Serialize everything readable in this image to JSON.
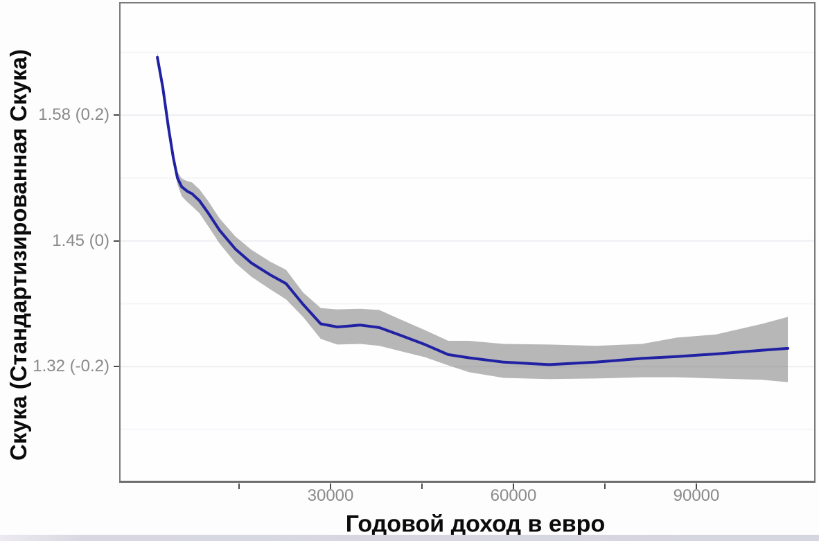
{
  "chart_data": {
    "type": "line",
    "title": "",
    "xlabel": "Годовой доход в евро",
    "ylabel": "Скука (Стандартизированная Скука)",
    "xlim": [
      -4660,
      109550
    ],
    "ylim": [
      -0.385,
      0.38
    ],
    "grid": "horizontal major and minor gridlines, very faint; no vertical gridlines",
    "legend": "none",
    "line_color": "#2121a3",
    "band_color": "#b8b8b8",
    "series": [
      {
        "name": "smoothed-boredom-vs-income",
        "x": [
          1600,
          2500,
          3400,
          4200,
          4900,
          5600,
          6500,
          7300,
          8500,
          9900,
          11800,
          14400,
          17000,
          20100,
          22700,
          25500,
          28400,
          31100,
          34900,
          38000,
          41700,
          45500,
          49300,
          52700,
          58400,
          65900,
          73500,
          81100,
          86800,
          93200,
          100800,
          105000
        ],
        "y": [
          0.292,
          0.244,
          0.182,
          0.133,
          0.1,
          0.086,
          0.079,
          0.075,
          0.064,
          0.045,
          0.017,
          -0.013,
          -0.035,
          -0.054,
          -0.068,
          -0.101,
          -0.132,
          -0.137,
          -0.134,
          -0.138,
          -0.151,
          -0.165,
          -0.181,
          -0.186,
          -0.193,
          -0.197,
          -0.193,
          -0.187,
          -0.184,
          -0.18,
          -0.174,
          -0.171
        ],
        "ci_upper": [
          0.3,
          0.251,
          0.19,
          0.141,
          0.11,
          0.099,
          0.095,
          0.093,
          0.082,
          0.064,
          0.036,
          0.007,
          -0.014,
          -0.033,
          -0.046,
          -0.082,
          -0.107,
          -0.109,
          -0.108,
          -0.11,
          -0.126,
          -0.142,
          -0.159,
          -0.159,
          -0.164,
          -0.165,
          -0.167,
          -0.164,
          -0.154,
          -0.149,
          -0.132,
          -0.121
        ],
        "ci_lower": [
          0.284,
          0.236,
          0.174,
          0.126,
          0.09,
          0.071,
          0.062,
          0.055,
          0.044,
          0.024,
          -0.004,
          -0.035,
          -0.057,
          -0.077,
          -0.093,
          -0.121,
          -0.156,
          -0.165,
          -0.164,
          -0.167,
          -0.176,
          -0.185,
          -0.198,
          -0.209,
          -0.218,
          -0.22,
          -0.219,
          -0.217,
          -0.217,
          -0.219,
          -0.221,
          -0.225
        ]
      }
    ],
    "minor_gridlines_y": [
      0.3,
      0.1,
      -0.1,
      -0.3
    ]
  },
  "y_axis": {
    "title": "Скука (Стандартизированная Скука)",
    "ticks": [
      {
        "label": "1.58 (0.2)",
        "value": 0.2
      },
      {
        "label": "1.45 (0)",
        "value": 0.0
      },
      {
        "label": "1.32 (-0.2)",
        "value": -0.2
      }
    ]
  },
  "x_axis": {
    "title": "Годовой доход в евро",
    "ticks": [
      {
        "label": "",
        "value": 15000
      },
      {
        "label": "30000",
        "value": 30000
      },
      {
        "label": "",
        "value": 45000
      },
      {
        "label": "60000",
        "value": 60000
      },
      {
        "label": "",
        "value": 75000
      },
      {
        "label": "90000",
        "value": 90000
      }
    ]
  },
  "colors": {
    "background": "#fdfdfd",
    "panel_border": "#7a7a7a",
    "tick_label": "#8a8a8a",
    "tick_mark": "#4b4b4b",
    "grid_major": "#eeedf2",
    "grid_minor": "#f6f5f9",
    "footer_bar": "#d8d8e2"
  }
}
